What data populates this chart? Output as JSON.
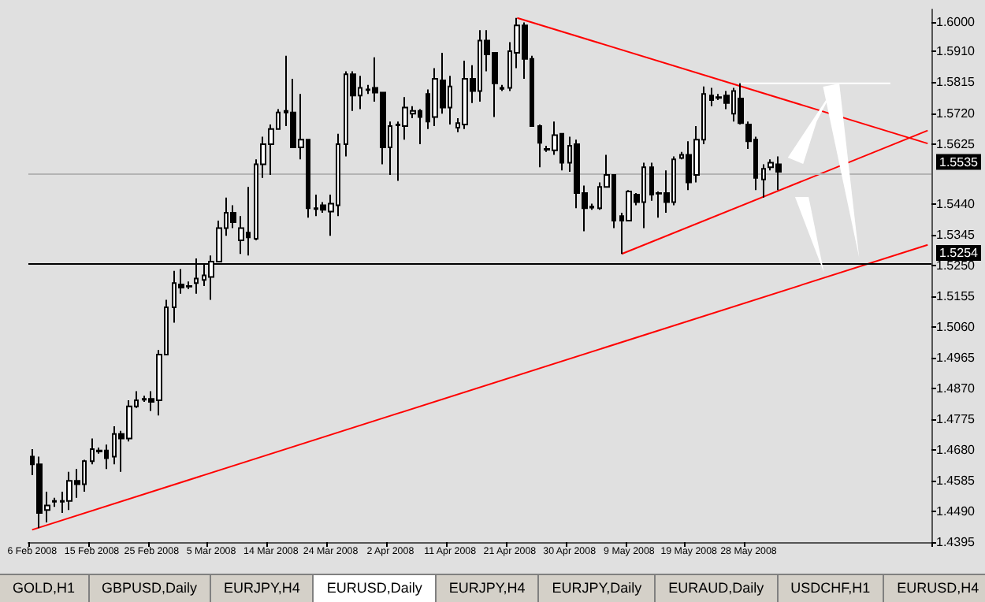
{
  "chart_data": {
    "type": "candlestick",
    "categories": [
      "6 Feb 2008",
      null,
      null,
      null,
      null,
      null,
      null,
      null,
      "15 Feb 2008",
      null,
      null,
      null,
      null,
      null,
      null,
      null,
      "25 Feb 2008",
      null,
      null,
      null,
      null,
      null,
      null,
      null,
      "5 Mar 2008",
      null,
      null,
      null,
      null,
      null,
      null,
      null,
      "14 Mar 2008",
      null,
      null,
      null,
      null,
      null,
      null,
      null,
      "24 Mar 2008",
      null,
      null,
      null,
      null,
      null,
      null,
      null,
      "2 Apr 2008",
      null,
      null,
      null,
      null,
      null,
      null,
      null,
      "11 Apr 2008",
      null,
      null,
      null,
      null,
      null,
      null,
      null,
      "21 Apr 2008",
      null,
      null,
      null,
      null,
      null,
      null,
      null,
      "30 Apr 2008",
      null,
      null,
      null,
      null,
      null,
      null,
      null,
      "9 May 2008",
      null,
      null,
      null,
      null,
      null,
      null,
      null,
      "19 May 2008",
      null,
      null,
      null,
      null,
      null,
      null,
      null,
      "28 May 2008",
      null,
      null,
      null,
      null,
      null,
      null,
      null,
      null,
      null,
      null,
      null,
      null,
      null,
      null,
      null,
      null,
      null,
      null,
      null,
      null,
      null,
      null,
      null,
      null
    ],
    "ohlc": [
      [
        1.4659,
        1.4682,
        1.4602,
        1.4635
      ],
      [
        1.4635,
        1.4659,
        1.4438,
        1.4485
      ],
      [
        1.4494,
        1.4551,
        1.4456,
        1.4508
      ],
      [
        1.4522,
        1.4532,
        1.4504,
        1.452
      ],
      [
        1.4522,
        1.4551,
        1.4485,
        1.452
      ],
      [
        1.4522,
        1.4612,
        1.4494,
        1.4584
      ],
      [
        1.4584,
        1.4621,
        1.4532,
        1.4574
      ],
      [
        1.4574,
        1.4649,
        1.4551,
        1.4645
      ],
      [
        1.4645,
        1.4715,
        1.4635,
        1.4682
      ],
      [
        1.4678,
        1.4687,
        1.4668,
        1.4675
      ],
      [
        1.4678,
        1.4696,
        1.4621,
        1.4654
      ],
      [
        1.4659,
        1.4753,
        1.4635,
        1.4729
      ],
      [
        1.4729,
        1.4739,
        1.4612,
        1.4715
      ],
      [
        1.4715,
        1.4833,
        1.4706,
        1.4814
      ],
      [
        1.4814,
        1.4861,
        1.4809,
        1.4833
      ],
      [
        1.4837,
        1.4847,
        1.4828,
        1.4835
      ],
      [
        1.4837,
        1.4861,
        1.48,
        1.4828
      ],
      [
        1.4833,
        1.4988,
        1.4786,
        1.4974
      ],
      [
        1.4974,
        1.5143,
        1.4974,
        1.512
      ],
      [
        1.512,
        1.5233,
        1.5073,
        1.5195
      ],
      [
        1.5191,
        1.5238,
        1.5162,
        1.5181
      ],
      [
        1.5186,
        1.52,
        1.5176,
        1.5184
      ],
      [
        1.5195,
        1.5271,
        1.5162,
        1.5209
      ],
      [
        1.5205,
        1.5256,
        1.5186,
        1.5219
      ],
      [
        1.5214,
        1.528,
        1.5143,
        1.5261
      ],
      [
        1.5261,
        1.5388,
        1.5261,
        1.5365
      ],
      [
        1.5365,
        1.5459,
        1.5341,
        1.5412
      ],
      [
        1.5412,
        1.5435,
        1.5365,
        1.5383
      ],
      [
        1.5327,
        1.5402,
        1.5285,
        1.5365
      ],
      [
        1.5351,
        1.5492,
        1.528,
        1.5336
      ],
      [
        1.5332,
        1.5577,
        1.5327,
        1.5562
      ],
      [
        1.5562,
        1.5647,
        1.552,
        1.5624
      ],
      [
        1.5624,
        1.5685,
        1.5529,
        1.5671
      ],
      [
        1.5671,
        1.5732,
        1.5671,
        1.5722
      ],
      [
        1.5727,
        1.5897,
        1.568,
        1.5722
      ],
      [
        1.5722,
        1.5826,
        1.5614,
        1.5614
      ],
      [
        1.5614,
        1.5779,
        1.5577,
        1.5638
      ],
      [
        1.5638,
        1.5638,
        1.5397,
        1.5426
      ],
      [
        1.5426,
        1.5468,
        1.5402,
        1.5424
      ],
      [
        1.5435,
        1.5445,
        1.5412,
        1.5421
      ],
      [
        1.5416,
        1.5468,
        1.5341,
        1.544
      ],
      [
        1.5435,
        1.5656,
        1.5402,
        1.5624
      ],
      [
        1.5624,
        1.5849,
        1.5586,
        1.584
      ],
      [
        1.584,
        1.5849,
        1.5727,
        1.5774
      ],
      [
        1.5774,
        1.5835,
        1.5732,
        1.5798
      ],
      [
        1.5793,
        1.5807,
        1.5779,
        1.5791
      ],
      [
        1.5798,
        1.5892,
        1.5755,
        1.5783
      ],
      [
        1.5783,
        1.5783,
        1.5562,
        1.5614
      ],
      [
        1.5614,
        1.5694,
        1.5529,
        1.568
      ],
      [
        1.5685,
        1.5694,
        1.5511,
        1.5682
      ],
      [
        1.568,
        1.5769,
        1.5638,
        1.5737
      ],
      [
        1.5718,
        1.5741,
        1.5704,
        1.5727
      ],
      [
        1.5727,
        1.5732,
        1.5624,
        1.5708
      ],
      [
        1.5779,
        1.5793,
        1.5671,
        1.5694
      ],
      [
        1.5708,
        1.5859,
        1.568,
        1.5826
      ],
      [
        1.5821,
        1.5906,
        1.5718,
        1.5737
      ],
      [
        1.5737,
        1.5835,
        1.5685,
        1.5802
      ],
      [
        1.5675,
        1.5704,
        1.5661,
        1.5689
      ],
      [
        1.5685,
        1.5882,
        1.5671,
        1.5826
      ],
      [
        1.5826,
        1.5868,
        1.5751,
        1.5788
      ],
      [
        1.5788,
        1.5976,
        1.5755,
        1.5944
      ],
      [
        1.5944,
        1.5976,
        1.5849,
        1.5901
      ],
      [
        1.5906,
        1.5906,
        1.5708,
        1.5812
      ],
      [
        1.5798,
        1.5807,
        1.5788,
        1.5795
      ],
      [
        1.5798,
        1.5939,
        1.5788,
        1.5911
      ],
      [
        1.5906,
        1.6014,
        1.5859,
        1.5991
      ],
      [
        1.5991,
        1.6,
        1.5826,
        1.5887
      ],
      [
        1.5887,
        1.5897,
        1.568,
        1.568
      ],
      [
        1.568,
        1.5685,
        1.5553,
        1.5628
      ],
      [
        1.5609,
        1.5619,
        1.56,
        1.5607
      ],
      [
        1.5605,
        1.5694,
        1.5591,
        1.5652
      ],
      [
        1.5656,
        1.5656,
        1.5543,
        1.5567
      ],
      [
        1.5567,
        1.5647,
        1.5539,
        1.5619
      ],
      [
        1.5624,
        1.5638,
        1.5426,
        1.5473
      ],
      [
        1.5473,
        1.5496,
        1.5355,
        1.5426
      ],
      [
        1.5431,
        1.544,
        1.5421,
        1.5428
      ],
      [
        1.5426,
        1.5506,
        1.5421,
        1.5492
      ],
      [
        1.5492,
        1.5591,
        1.5492,
        1.5529
      ],
      [
        1.5529,
        1.5529,
        1.5365,
        1.5388
      ],
      [
        1.5402,
        1.5412,
        1.5285,
        1.5388
      ],
      [
        1.5388,
        1.5482,
        1.5388,
        1.5478
      ],
      [
        1.5468,
        1.5473,
        1.5435,
        1.5445
      ],
      [
        1.5445,
        1.5567,
        1.5365,
        1.5553
      ],
      [
        1.5553,
        1.5567,
        1.5449,
        1.5468
      ],
      [
        1.5473,
        1.5478,
        1.5397,
        1.5471
      ],
      [
        1.5473,
        1.5543,
        1.5412,
        1.5445
      ],
      [
        1.5445,
        1.5586,
        1.5435,
        1.5577
      ],
      [
        1.5581,
        1.56,
        1.5577,
        1.5591
      ],
      [
        1.5591,
        1.5633,
        1.5482,
        1.5506
      ],
      [
        1.5529,
        1.568,
        1.5506,
        1.5638
      ],
      [
        1.5638,
        1.5802,
        1.5624,
        1.5779
      ],
      [
        1.5774,
        1.5798,
        1.5741,
        1.576
      ],
      [
        1.5769,
        1.5779,
        1.576,
        1.5767
      ],
      [
        1.5774,
        1.5788,
        1.5732,
        1.5751
      ],
      [
        1.5718,
        1.5798,
        1.5694,
        1.5788
      ],
      [
        1.5765,
        1.5812,
        1.5685,
        1.5689
      ],
      [
        1.5685,
        1.5694,
        1.5609,
        1.5633
      ],
      [
        1.5638,
        1.5647,
        1.5482,
        1.552
      ],
      [
        1.5515,
        1.5562,
        1.5459,
        1.5548
      ],
      [
        1.5553,
        1.5577,
        1.5543,
        1.5567
      ],
      [
        1.5562,
        1.5586,
        1.5482,
        1.5539
      ],
      null,
      null,
      null,
      null,
      null,
      null,
      null,
      null,
      null,
      null,
      null,
      null,
      null,
      null,
      null,
      null,
      null,
      null,
      null,
      null
    ],
    "series": [
      {
        "type": "line",
        "color": "#ff0000",
        "values": [
          null,
          null,
          null,
          null,
          null,
          null,
          null,
          null,
          null,
          null,
          null,
          null,
          null,
          null,
          null,
          null,
          null,
          null,
          null,
          null,
          null,
          null,
          null,
          null,
          null,
          null,
          null,
          null,
          null,
          null,
          null,
          null,
          null,
          null,
          null,
          null,
          null,
          null,
          null,
          null,
          null,
          null,
          null,
          null,
          null,
          null,
          null,
          null,
          null,
          null,
          null,
          null,
          null,
          null,
          null,
          null,
          null,
          null,
          null,
          null,
          null,
          null,
          null,
          null,
          null,
          1.6014,
          null,
          null,
          null,
          null,
          null,
          null,
          null,
          null,
          null,
          null,
          null,
          null,
          null,
          null,
          null,
          null,
          null,
          null,
          null,
          null,
          null,
          null,
          null,
          null,
          null,
          null,
          null,
          null,
          null,
          null,
          null,
          null,
          null,
          null,
          null,
          null,
          null,
          null,
          null,
          null,
          null,
          null,
          null,
          null,
          null,
          null,
          null,
          null,
          null,
          null,
          null,
          null,
          null,
          null,
          1.5626
        ]
      },
      {
        "type": "line",
        "color": "#ff0000",
        "values": [
          null,
          null,
          null,
          null,
          null,
          null,
          null,
          null,
          null,
          null,
          null,
          null,
          null,
          null,
          null,
          null,
          null,
          null,
          null,
          null,
          null,
          null,
          null,
          null,
          null,
          null,
          null,
          null,
          null,
          null,
          null,
          null,
          null,
          null,
          null,
          null,
          null,
          null,
          null,
          null,
          null,
          null,
          null,
          null,
          null,
          null,
          null,
          null,
          null,
          null,
          null,
          null,
          null,
          null,
          null,
          null,
          null,
          null,
          null,
          null,
          null,
          null,
          null,
          null,
          null,
          null,
          null,
          null,
          null,
          null,
          null,
          null,
          null,
          null,
          null,
          null,
          null,
          null,
          null,
          1.5285,
          null,
          null,
          null,
          null,
          null,
          null,
          null,
          null,
          null,
          null,
          null,
          null,
          null,
          null,
          null,
          null,
          null,
          null,
          null,
          null,
          null,
          null,
          null,
          null,
          null,
          null,
          null,
          null,
          null,
          null,
          null,
          null,
          null,
          null,
          null,
          null,
          null,
          null,
          null,
          null,
          1.5666
        ]
      },
      {
        "type": "line",
        "color": "#ff0000",
        "values": [
          1.4433,
          null,
          null,
          null,
          null,
          null,
          null,
          null,
          null,
          null,
          null,
          null,
          null,
          null,
          null,
          null,
          null,
          null,
          null,
          null,
          null,
          null,
          null,
          null,
          null,
          null,
          null,
          null,
          null,
          null,
          null,
          null,
          null,
          null,
          null,
          null,
          null,
          null,
          null,
          null,
          null,
          null,
          null,
          null,
          null,
          null,
          null,
          null,
          null,
          null,
          null,
          null,
          null,
          null,
          null,
          null,
          null,
          null,
          null,
          null,
          null,
          null,
          null,
          null,
          null,
          null,
          null,
          null,
          null,
          null,
          null,
          null,
          null,
          null,
          null,
          null,
          null,
          null,
          null,
          null,
          null,
          null,
          null,
          null,
          null,
          null,
          null,
          null,
          null,
          null,
          null,
          null,
          null,
          null,
          null,
          null,
          null,
          null,
          null,
          null,
          null,
          null,
          null,
          null,
          null,
          null,
          null,
          null,
          null,
          null,
          null,
          null,
          null,
          null,
          null,
          null,
          null,
          null,
          null,
          null,
          1.5313
        ]
      },
      {
        "type": "line",
        "color": "#ffffff",
        "values": [
          null,
          null,
          null,
          null,
          null,
          null,
          null,
          null,
          null,
          null,
          null,
          null,
          null,
          null,
          null,
          null,
          null,
          null,
          null,
          null,
          null,
          null,
          null,
          null,
          null,
          null,
          null,
          null,
          null,
          null,
          null,
          null,
          null,
          null,
          null,
          null,
          null,
          null,
          null,
          null,
          null,
          null,
          null,
          null,
          null,
          null,
          null,
          null,
          null,
          null,
          null,
          null,
          null,
          null,
          null,
          null,
          null,
          null,
          null,
          null,
          null,
          null,
          null,
          null,
          null,
          null,
          null,
          null,
          null,
          null,
          null,
          null,
          null,
          null,
          null,
          null,
          null,
          null,
          null,
          null,
          null,
          null,
          null,
          null,
          null,
          null,
          null,
          null,
          null,
          null,
          null,
          null,
          null,
          null,
          null,
          1.5812,
          null,
          null,
          null,
          null,
          null,
          null,
          null,
          null,
          null,
          null,
          null,
          null,
          null,
          null,
          null,
          null,
          null,
          null,
          null,
          1.5812,
          null,
          null,
          null,
          null,
          null
        ]
      }
    ],
    "ylim": [
      1.4395,
      1.604
    ],
    "yticks": [
      {
        "value": 1.6,
        "label": "1.6000"
      },
      {
        "value": 1.591,
        "label": "1.5910"
      },
      {
        "value": 1.5815,
        "label": "1.5815"
      },
      {
        "value": 1.572,
        "label": "1.5720"
      },
      {
        "value": 1.5625,
        "label": "1.5625"
      },
      {
        "value": 1.544,
        "label": "1.5440"
      },
      {
        "value": 1.5345,
        "label": "1.5345"
      },
      {
        "value": 1.525,
        "label": "1.5250"
      },
      {
        "value": 1.5155,
        "label": "1.5155"
      },
      {
        "value": 1.506,
        "label": "1.5060"
      },
      {
        "value": 1.4965,
        "label": "1.4965"
      },
      {
        "value": 1.487,
        "label": "1.4870"
      },
      {
        "value": 1.4775,
        "label": "1.4775"
      },
      {
        "value": 1.468,
        "label": "1.4680"
      },
      {
        "value": 1.4585,
        "label": "1.4585"
      },
      {
        "value": 1.449,
        "label": "1.4490"
      },
      {
        "value": 1.4395,
        "label": "1.4395"
      }
    ],
    "ref_lines": [
      {
        "axis": "y",
        "value": 1.5535,
        "label": "1.5535",
        "color": "#b4b4b4"
      },
      {
        "axis": "y",
        "value": 1.5254,
        "label": "1.5254",
        "color": "#000000"
      }
    ],
    "annotations": [
      "GOLD,H1",
      "GBPUSD,Daily",
      "EURJPY,H4",
      "EURUSD,Daily",
      "EURJPY,H4",
      "EURJPY,Daily",
      "EURAUD,Daily",
      "USDCHF,H1",
      "EURUSD,H4"
    ]
  }
}
